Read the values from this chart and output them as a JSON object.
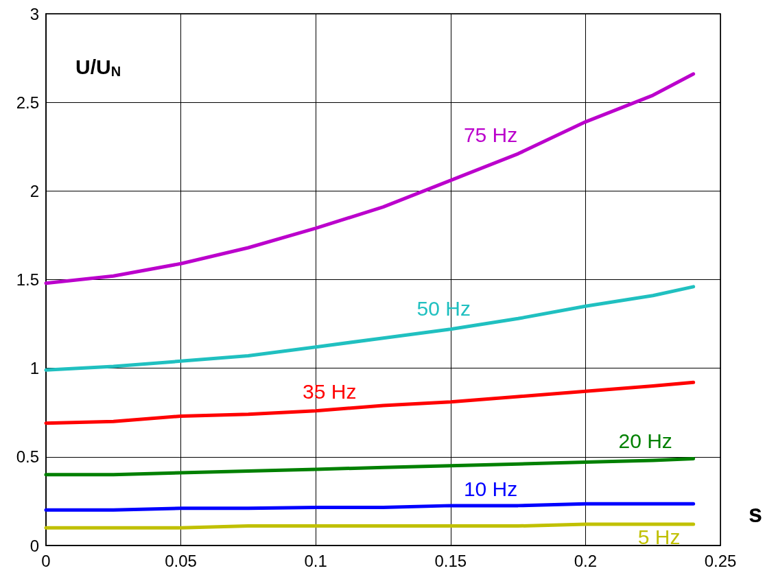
{
  "chart_data": {
    "type": "line",
    "xlabel": "s",
    "ylabel": "U/U$_{N}$",
    "x": [
      0,
      0.025,
      0.05,
      0.075,
      0.1,
      0.125,
      0.15,
      0.175,
      0.2,
      0.225,
      0.24
    ],
    "series": [
      {
        "name": "75 Hz",
        "color": "#bb00cc",
        "values": [
          1.48,
          1.52,
          1.59,
          1.68,
          1.79,
          1.91,
          2.06,
          2.21,
          2.39,
          2.54,
          2.66
        ]
      },
      {
        "name": "50 Hz",
        "color": "#20c0c0",
        "values": [
          0.99,
          1.01,
          1.04,
          1.07,
          1.12,
          1.17,
          1.22,
          1.28,
          1.35,
          1.41,
          1.46
        ]
      },
      {
        "name": "35 Hz",
        "color": "#ff0000",
        "values": [
          0.69,
          0.7,
          0.73,
          0.74,
          0.76,
          0.79,
          0.81,
          0.84,
          0.87,
          0.9,
          0.92
        ]
      },
      {
        "name": "20 Hz",
        "color": "#008000",
        "values": [
          0.4,
          0.4,
          0.41,
          0.42,
          0.43,
          0.44,
          0.45,
          0.46,
          0.47,
          0.48,
          0.49
        ]
      },
      {
        "name": "10 Hz",
        "color": "#0000ff",
        "values": [
          0.2,
          0.2,
          0.21,
          0.21,
          0.215,
          0.215,
          0.225,
          0.225,
          0.235,
          0.235,
          0.235
        ]
      },
      {
        "name": "5 Hz",
        "color": "#c0c000",
        "values": [
          0.1,
          0.1,
          0.1,
          0.11,
          0.11,
          0.11,
          0.11,
          0.11,
          0.12,
          0.12,
          0.12
        ]
      }
    ],
    "xlim": [
      0,
      0.25
    ],
    "xticks": [
      0,
      0.05,
      0.1,
      0.15,
      0.2,
      0.25
    ],
    "ylim": [
      0,
      3
    ],
    "yticks": [
      0,
      0.5,
      1,
      1.5,
      2,
      2.5,
      3
    ],
    "grid": true,
    "legend": false,
    "marker": "none",
    "line_style": "solid"
  }
}
